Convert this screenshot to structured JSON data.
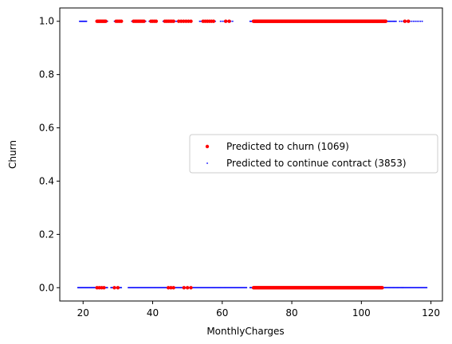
{
  "chart_data": {
    "type": "scatter",
    "title": "",
    "xlabel": "MonthlyCharges",
    "ylabel": "Churn",
    "xlim": [
      13.3,
      123.3
    ],
    "ylim": [
      -0.05,
      1.05
    ],
    "xticks": [
      20,
      40,
      60,
      80,
      100,
      120
    ],
    "yticks": [
      0.0,
      0.2,
      0.4,
      0.6,
      0.8,
      1.0
    ],
    "xtick_labels": [
      "20",
      "40",
      "60",
      "80",
      "100",
      "120"
    ],
    "ytick_labels": [
      "0.0",
      "0.2",
      "0.4",
      "0.6",
      "0.8",
      "1.0"
    ],
    "grid": false,
    "legend_position": "center-right",
    "series": [
      {
        "name": "Predicted to churn (1069)",
        "color": "#ff0000",
        "marker": "circle",
        "ranges": [
          {
            "y": 1,
            "from": 24,
            "to": 26.5,
            "n": 10
          },
          {
            "y": 1,
            "from": 29.5,
            "to": 31,
            "n": 4
          },
          {
            "y": 1,
            "from": 34.5,
            "to": 37.5,
            "n": 8
          },
          {
            "y": 1,
            "from": 39.5,
            "to": 41,
            "n": 4
          },
          {
            "y": 1,
            "from": 43.5,
            "to": 46,
            "n": 6
          },
          {
            "y": 1,
            "from": 47.5,
            "to": 51,
            "n": 6
          },
          {
            "y": 1,
            "from": 54.5,
            "to": 57.5,
            "n": 6
          },
          {
            "y": 1,
            "from": 61,
            "to": 62,
            "n": 2
          },
          {
            "y": 1,
            "from": 69,
            "to": 107,
            "n": 200
          },
          {
            "y": 1,
            "from": 112.5,
            "to": 113.5,
            "n": 2
          },
          {
            "y": 0,
            "from": 24,
            "to": 26,
            "n": 4
          },
          {
            "y": 0,
            "from": 29,
            "to": 30,
            "n": 2
          },
          {
            "y": 0,
            "from": 44.5,
            "to": 46,
            "n": 3
          },
          {
            "y": 0,
            "from": 49,
            "to": 51,
            "n": 3
          },
          {
            "y": 0,
            "from": 69,
            "to": 106,
            "n": 160
          }
        ]
      },
      {
        "name": "Predicted to continue contract (3853)",
        "color": "#0000ff",
        "marker": "point",
        "ranges": [
          {
            "y": 1,
            "from": 19,
            "to": 21,
            "n": 14
          },
          {
            "y": 1,
            "from": 24,
            "to": 27,
            "n": 12
          },
          {
            "y": 1,
            "from": 29,
            "to": 31,
            "n": 8
          },
          {
            "y": 1,
            "from": 34,
            "to": 38,
            "n": 12
          },
          {
            "y": 1,
            "from": 39,
            "to": 41,
            "n": 8
          },
          {
            "y": 1,
            "from": 43,
            "to": 51,
            "n": 22
          },
          {
            "y": 1,
            "from": 53.5,
            "to": 58,
            "n": 14
          },
          {
            "y": 1,
            "from": 59.5,
            "to": 63,
            "n": 8
          },
          {
            "y": 1,
            "from": 68,
            "to": 110,
            "n": 150
          },
          {
            "y": 1,
            "from": 111,
            "to": 117.5,
            "n": 14
          },
          {
            "y": 0,
            "from": 18.5,
            "to": 27,
            "n": 60
          },
          {
            "y": 0,
            "from": 28,
            "to": 31,
            "n": 16
          },
          {
            "y": 0,
            "from": 33,
            "to": 67,
            "n": 150
          },
          {
            "y": 0,
            "from": 68,
            "to": 112,
            "n": 230
          },
          {
            "y": 0,
            "from": 112,
            "to": 118.8,
            "n": 30
          }
        ]
      }
    ]
  }
}
